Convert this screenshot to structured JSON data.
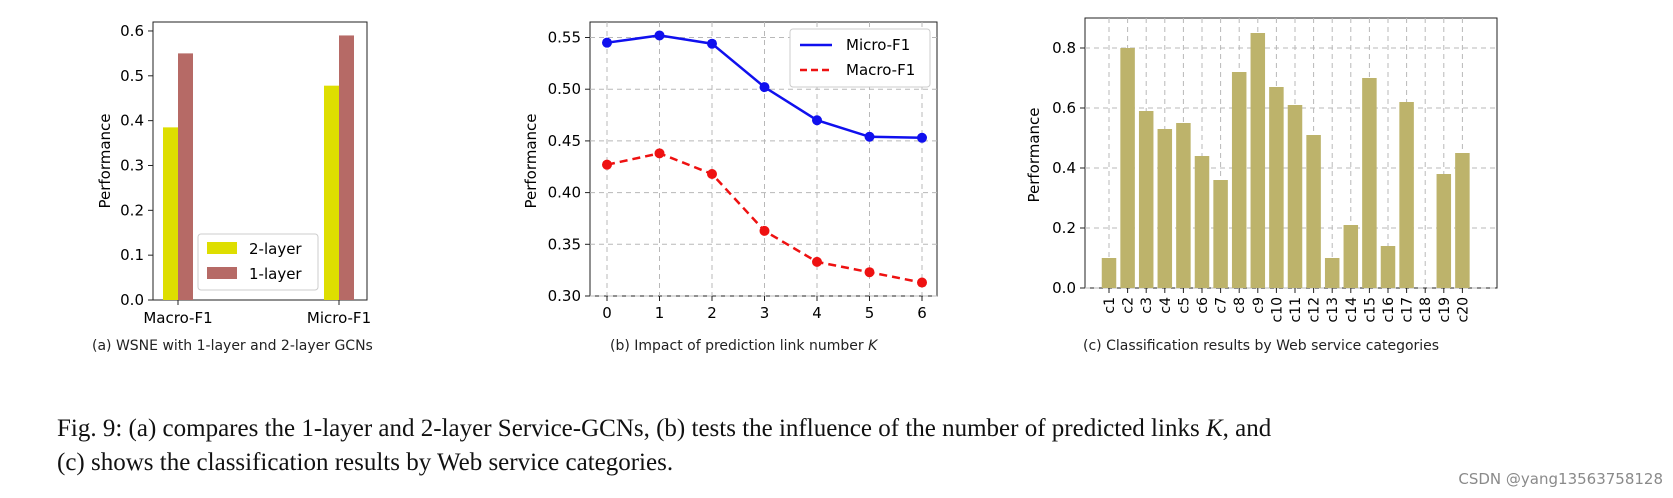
{
  "chart_data": [
    {
      "type": "bar",
      "caption": "(a) WSNE with 1-layer and 2-layer GCNs",
      "ylabel": "Performance",
      "categories": [
        "Macro-F1",
        "Micro-F1"
      ],
      "ylim": [
        0,
        0.62
      ],
      "yticks": [
        "0.0",
        "0.1",
        "0.2",
        "0.3",
        "0.4",
        "0.5",
        "0.6"
      ],
      "legend_position": "lower-right",
      "series": [
        {
          "name": "2-layer",
          "color": "#dede00",
          "values": [
            0.385,
            0.478
          ]
        },
        {
          "name": "1-layer",
          "color": "#b66a66",
          "values": [
            0.55,
            0.59
          ]
        }
      ]
    },
    {
      "type": "line",
      "caption_prefix": "(b) Impact of prediction link number ",
      "caption_var": "K",
      "ylabel": "Performance",
      "x": [
        0,
        1,
        2,
        3,
        4,
        5,
        6
      ],
      "xticks": [
        "0",
        "1",
        "2",
        "3",
        "4",
        "5",
        "6"
      ],
      "ylim": [
        0.3,
        0.565
      ],
      "yticks": [
        "0.30",
        "0.35",
        "0.40",
        "0.45",
        "0.50",
        "0.55"
      ],
      "grid": true,
      "legend_position": "top-right",
      "series": [
        {
          "name": "Micro-F1",
          "color": "#1010ee",
          "style": "solid",
          "values": [
            0.545,
            0.552,
            0.544,
            0.502,
            0.47,
            0.454,
            0.453
          ]
        },
        {
          "name": "Macro-F1",
          "color": "#ee1111",
          "style": "dashed",
          "values": [
            0.427,
            0.438,
            0.418,
            0.363,
            0.333,
            0.323,
            0.313
          ]
        }
      ]
    },
    {
      "type": "bar",
      "caption": "(c) Classification results by Web service categories",
      "ylabel": "Performance",
      "categories": [
        "c1",
        "c2",
        "c3",
        "c4",
        "c5",
        "c6",
        "c7",
        "c8",
        "c9",
        "c10",
        "c11",
        "c12",
        "c13",
        "c14",
        "c15",
        "c16",
        "c17",
        "c18",
        "c19",
        "c20"
      ],
      "values": [
        0.1,
        0.8,
        0.59,
        0.53,
        0.55,
        0.44,
        0.36,
        0.72,
        0.85,
        0.67,
        0.61,
        0.51,
        0.1,
        0.21,
        0.7,
        0.14,
        0.62,
        0.0,
        0.38,
        0.45
      ],
      "color": "#bdb36b",
      "ylim": [
        0,
        0.9
      ],
      "yticks": [
        "0.0",
        "0.2",
        "0.4",
        "0.6",
        "0.8"
      ],
      "grid": true
    }
  ],
  "figure_caption": {
    "line1_pre": "Fig. 9: (a) compares the 1-layer and 2-layer Service-GCNs, (b) tests the influence of the number of predicted links ",
    "line1_var": "K",
    "line1_post": ", and",
    "line2": "(c) shows the classification results by Web service categories."
  },
  "watermark": "CSDN @yang13563758128"
}
